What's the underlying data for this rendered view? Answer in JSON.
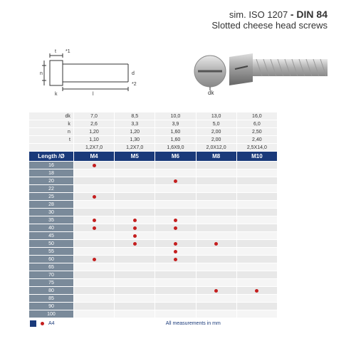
{
  "title": {
    "prefix": "sim. ISO 1207",
    "main": "- DIN 84",
    "sub": "Slotted cheese head screws"
  },
  "diagram_labels": {
    "t": "t",
    "n": "n",
    "k": "k",
    "l": "l",
    "star1": "*1",
    "star2": "*2",
    "d": "d",
    "dk": "dk"
  },
  "spec_rows": [
    {
      "label": "dk",
      "vals": [
        "7,0",
        "8,5",
        "10,0",
        "13,0",
        "16,0"
      ]
    },
    {
      "label": "k",
      "vals": [
        "2,6",
        "3,3",
        "3,9",
        "5,0",
        "6,0"
      ]
    },
    {
      "label": "n",
      "vals": [
        "1,20",
        "1,20",
        "1,60",
        "2,00",
        "2,50"
      ]
    },
    {
      "label": "t",
      "vals": [
        "1,10",
        "1,30",
        "1,60",
        "2,00",
        "2,40"
      ]
    },
    {
      "label": "",
      "vals": [
        "1,2X7,0",
        "1,2X7,0",
        "1,6X9,0",
        "2,0X12,0",
        "2,5X14,0"
      ]
    }
  ],
  "header": {
    "label": "Length /Ø",
    "cols": [
      "M4",
      "M5",
      "M6",
      "M8",
      "M10"
    ]
  },
  "lengths": [
    "16",
    "18",
    "20",
    "22",
    "25",
    "28",
    "30",
    "35",
    "40",
    "45",
    "50",
    "55",
    "60",
    "65",
    "70",
    "75",
    "80",
    "85",
    "90",
    "100"
  ],
  "dots": {
    "16": [
      0
    ],
    "20": [
      2
    ],
    "25": [
      0
    ],
    "35": [
      0,
      1,
      2
    ],
    "40": [
      0,
      1,
      2
    ],
    "45": [
      1
    ],
    "50": [
      1,
      2,
      3
    ],
    "55": [
      2
    ],
    "60": [
      0,
      2
    ],
    "80": [
      3,
      4
    ]
  },
  "dot_color": "#c41e1e",
  "colors": {
    "header_bg": "#1a3a7a",
    "len_bg": "#7a8a9a",
    "cell_bg": "#e8e8e8",
    "cell_alt": "#f5f5f5"
  },
  "legend": {
    "a4": "A4",
    "note": "All measurements in mm"
  }
}
